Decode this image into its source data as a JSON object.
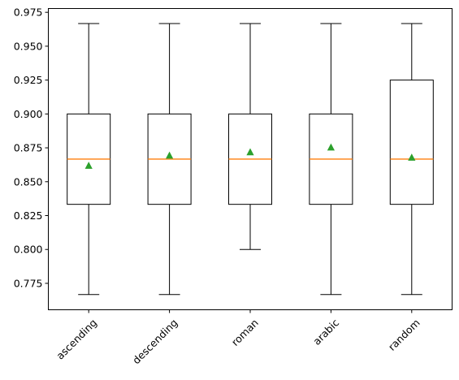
{
  "chart_data": {
    "type": "boxplot",
    "categories": [
      "ascending",
      "descending",
      "roman",
      "arabic",
      "random"
    ],
    "series": [
      {
        "whisker_low": 0.7667,
        "q1": 0.8333,
        "median": 0.8667,
        "q3": 0.9,
        "whisker_high": 0.9667,
        "mean": 0.862
      },
      {
        "whisker_low": 0.7667,
        "q1": 0.8333,
        "median": 0.8667,
        "q3": 0.9,
        "whisker_high": 0.9667,
        "mean": 0.8695
      },
      {
        "whisker_low": 0.8,
        "q1": 0.8333,
        "median": 0.8667,
        "q3": 0.9,
        "whisker_high": 0.9667,
        "mean": 0.872
      },
      {
        "whisker_low": 0.7667,
        "q1": 0.8333,
        "median": 0.8667,
        "q3": 0.9,
        "whisker_high": 0.9667,
        "mean": 0.8755
      },
      {
        "whisker_low": 0.7667,
        "q1": 0.8333,
        "median": 0.8667,
        "q3": 0.925,
        "whisker_high": 0.9667,
        "mean": 0.868
      }
    ],
    "yticks": [
      "0.775",
      "0.800",
      "0.825",
      "0.850",
      "0.875",
      "0.900",
      "0.925",
      "0.950",
      "0.975"
    ],
    "ylim": [
      0.7555,
      0.9778
    ],
    "grid": false,
    "colors": {
      "box": "#000000",
      "median": "#ff7f0e",
      "mean": "#2ca02c"
    }
  }
}
